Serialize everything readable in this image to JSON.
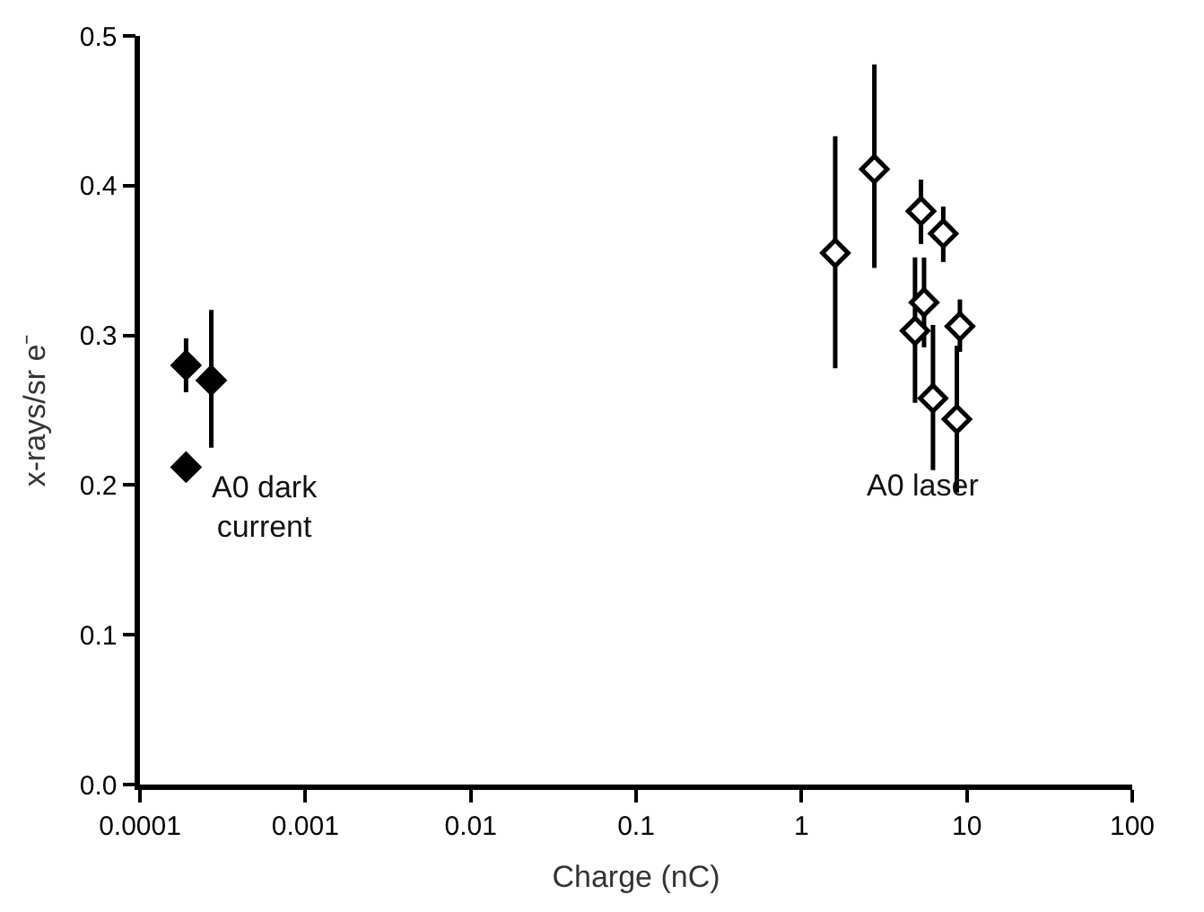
{
  "chart_data": {
    "type": "scatter",
    "xlabel": "Charge (nC)",
    "ylabel": "x-rays/sr e⁻",
    "log": "x",
    "xlim": [
      0.0001,
      100
    ],
    "xticks": [
      0.0001,
      0.001,
      0.01,
      0.1,
      1,
      10,
      100
    ],
    "ylim": [
      0,
      0.5
    ],
    "yticks": [
      {
        "value": 0,
        "label": "0.0"
      },
      0.1,
      0.2,
      0.3,
      0.4,
      0.5
    ],
    "marker": "diamond",
    "annotations": [
      "A0 dark\ncurrent",
      "A0 laser"
    ],
    "series": [
      {
        "color": "#000000",
        "x": [
          0.00019,
          0.00027,
          0.00019
        ],
        "values": [
          0.28,
          0.27,
          0.212
        ],
        "errors": [
          [
            0.262,
            0.298
          ],
          [
            0.225,
            0.317
          ],
          [
            0.203,
            0.221
          ]
        ]
      },
      {
        "color": "#ffffff",
        "x": [
          1.6,
          2.76,
          5.28,
          7.2,
          5.51,
          4.86,
          6.24,
          9.08,
          8.7
        ],
        "values": [
          0.355,
          0.411,
          0.383,
          0.368,
          0.322,
          0.303,
          0.258,
          0.306,
          0.244
        ],
        "errors": [
          [
            0.278,
            0.433
          ],
          [
            0.345,
            0.481
          ],
          [
            0.361,
            0.404
          ],
          [
            0.349,
            0.386
          ],
          [
            0.292,
            0.352
          ],
          [
            0.255,
            0.352
          ],
          [
            0.21,
            0.307
          ],
          [
            0.289,
            0.324
          ],
          [
            0.195,
            0.293
          ]
        ]
      }
    ]
  }
}
